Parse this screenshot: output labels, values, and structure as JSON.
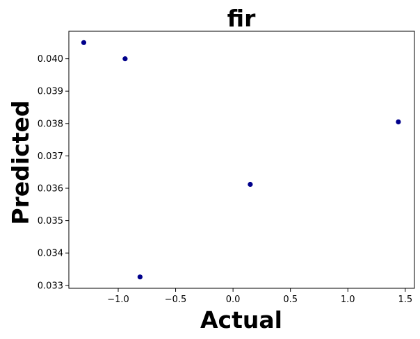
{
  "chart_data": {
    "type": "scatter",
    "title": "fir",
    "xlabel": "Actual",
    "ylabel": "Predicted",
    "xlim": [
      -1.43,
      1.58
    ],
    "ylim": [
      0.03291,
      0.04085
    ],
    "xticks": [
      -1.0,
      -0.5,
      0.0,
      0.5,
      1.0,
      1.5
    ],
    "xtick_labels": [
      "−1.0",
      "−0.5",
      "0.0",
      "0.5",
      "1.0",
      "1.5"
    ],
    "yticks": [
      0.033,
      0.034,
      0.035,
      0.036,
      0.037,
      0.038,
      0.039,
      0.04
    ],
    "ytick_labels": [
      "0.033",
      "0.034",
      "0.035",
      "0.036",
      "0.037",
      "0.038",
      "0.039",
      "0.040"
    ],
    "grid": false,
    "marker_color": "#00008b",
    "points": [
      {
        "x": -1.3,
        "y": 0.0405
      },
      {
        "x": -0.94,
        "y": 0.04
      },
      {
        "x": -0.81,
        "y": 0.03326
      },
      {
        "x": 0.15,
        "y": 0.03612
      },
      {
        "x": 1.44,
        "y": 0.03805
      }
    ]
  }
}
